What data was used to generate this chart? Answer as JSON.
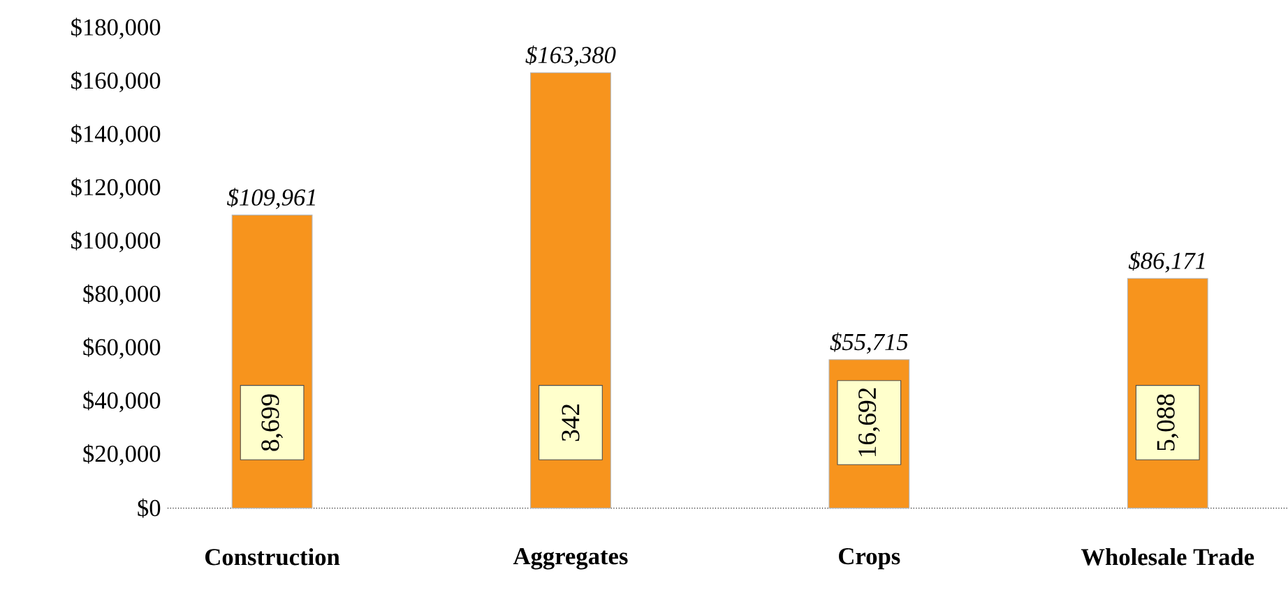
{
  "chart_data": {
    "type": "bar",
    "categories": [
      "Construction",
      "Aggregates",
      "Crops",
      "Wholesale Trade"
    ],
    "values": [
      109961,
      163380,
      55715,
      86171
    ],
    "value_labels": [
      "$109,961",
      "$163,380",
      "$55,715",
      "$86,171"
    ],
    "color": "#f7941d",
    "ylim": [
      0,
      180000
    ],
    "yticks": [
      {
        "value": 0,
        "label": "$0"
      },
      {
        "value": 20000,
        "label": "$20,000"
      },
      {
        "value": 40000,
        "label": "$40,000"
      },
      {
        "value": 60000,
        "label": "$60,000"
      },
      {
        "value": 80000,
        "label": "$80,000"
      },
      {
        "value": 100000,
        "label": "$100,000"
      },
      {
        "value": 120000,
        "label": "$120,000"
      },
      {
        "value": 140000,
        "label": "$140,000"
      },
      {
        "value": 160000,
        "label": "$160,000"
      },
      {
        "value": 180000,
        "label": "$180,000"
      }
    ],
    "annotations": [
      "8,699",
      "342",
      "16,692",
      "5,088"
    ]
  }
}
